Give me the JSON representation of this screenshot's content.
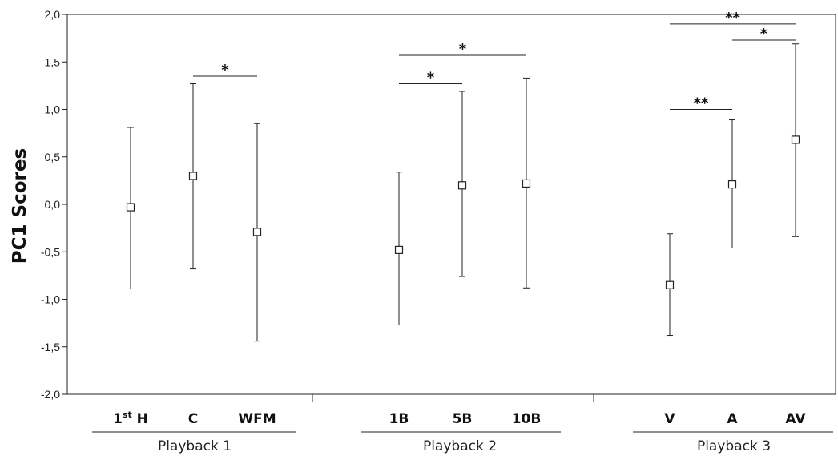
{
  "chart_data": {
    "type": "errorbar",
    "ylabel": "PC1 Scores",
    "ylim": [
      -2.0,
      2.0
    ],
    "yticks": [
      2.0,
      1.5,
      1.0,
      0.5,
      0.0,
      -0.5,
      -1.0,
      -1.5,
      -2.0
    ],
    "ytick_labels": [
      "2,0",
      "1,5",
      "1,0",
      "0,5",
      "0,0",
      "-0,5",
      "-1,0",
      "-1,5",
      "-2,0"
    ],
    "grid": false,
    "groups": [
      {
        "label": "Playback 1",
        "categories": [
          {
            "label": "1",
            "sup": "st",
            "suffix": " H",
            "mean": -0.03,
            "lower": -0.89,
            "upper": 0.81
          },
          {
            "label": "C",
            "mean": 0.3,
            "lower": -0.68,
            "upper": 1.27
          },
          {
            "label": "WFM",
            "mean": -0.29,
            "lower": -1.44,
            "upper": 0.85
          }
        ]
      },
      {
        "label": "Playback 2",
        "categories": [
          {
            "label": "1B",
            "mean": -0.48,
            "lower": -1.27,
            "upper": 0.34
          },
          {
            "label": "5B",
            "mean": 0.2,
            "lower": -0.76,
            "upper": 1.19
          },
          {
            "label": "10B",
            "mean": 0.22,
            "lower": -0.88,
            "upper": 1.33
          }
        ]
      },
      {
        "label": "Playback 3",
        "categories": [
          {
            "label": "V",
            "mean": -0.85,
            "lower": -1.38,
            "upper": -0.31
          },
          {
            "label": "A",
            "mean": 0.21,
            "lower": -0.46,
            "upper": 0.89
          },
          {
            "label": "AV",
            "mean": 0.68,
            "lower": -0.34,
            "upper": 1.69
          }
        ]
      }
    ],
    "significance": [
      {
        "from": "C",
        "to": "WFM",
        "label": "*",
        "y": 1.35
      },
      {
        "from": "1B",
        "to": "5B",
        "label": "*",
        "y": 1.27
      },
      {
        "from": "1B",
        "to": "10B",
        "label": "*",
        "y": 1.57
      },
      {
        "from": "V",
        "to": "A",
        "label": "**",
        "y": 1.0
      },
      {
        "from": "A",
        "to": "AV",
        "label": "*",
        "y": 1.73
      },
      {
        "from": "V",
        "to": "AV",
        "label": "**",
        "y": 1.9
      }
    ]
  }
}
